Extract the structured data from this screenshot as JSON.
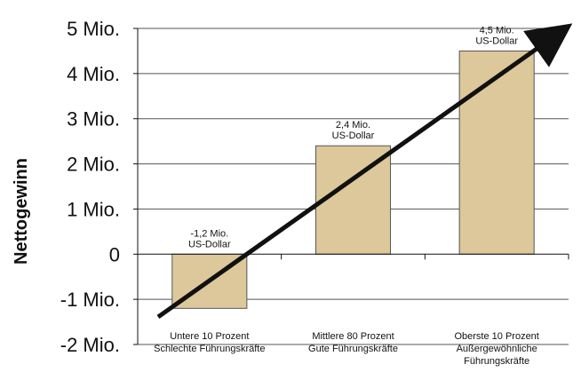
{
  "chart_data": {
    "type": "bar",
    "ylabel": "Nettogewinn",
    "ylim": [
      -2,
      5
    ],
    "yticks": [
      {
        "value": 5,
        "label": "5 Mio."
      },
      {
        "value": 4,
        "label": "4 Mio."
      },
      {
        "value": 3,
        "label": "3 Mio."
      },
      {
        "value": 2,
        "label": "2 Mio."
      },
      {
        "value": 1,
        "label": "1 Mio."
      },
      {
        "value": 0,
        "label": "0"
      },
      {
        "value": -1,
        "label": "-1 Mio."
      },
      {
        "value": -2,
        "label": "-2 Mio."
      }
    ],
    "categories": [
      [
        "Untere 10 Prozent",
        "Schlechte Führungskräfte"
      ],
      [
        "Mittlere 80 Prozent",
        "Gute Führungskräfte"
      ],
      [
        "Oberste 10 Prozent",
        "Außergewöhnliche",
        "Führungskräfte"
      ]
    ],
    "values": [
      -1.2,
      2.4,
      4.5
    ],
    "data_labels": [
      [
        "-1,2 Mio.",
        "US-Dollar"
      ],
      [
        "2,4 Mio.",
        "US-Dollar"
      ],
      [
        "4,5 Mio.",
        "US-Dollar"
      ]
    ],
    "grid": true,
    "trend_arrow": true,
    "colors": {
      "bar": "#dcc89a",
      "bar_stroke": "#555555",
      "grid": "#555555",
      "arrow": "#111111"
    }
  }
}
